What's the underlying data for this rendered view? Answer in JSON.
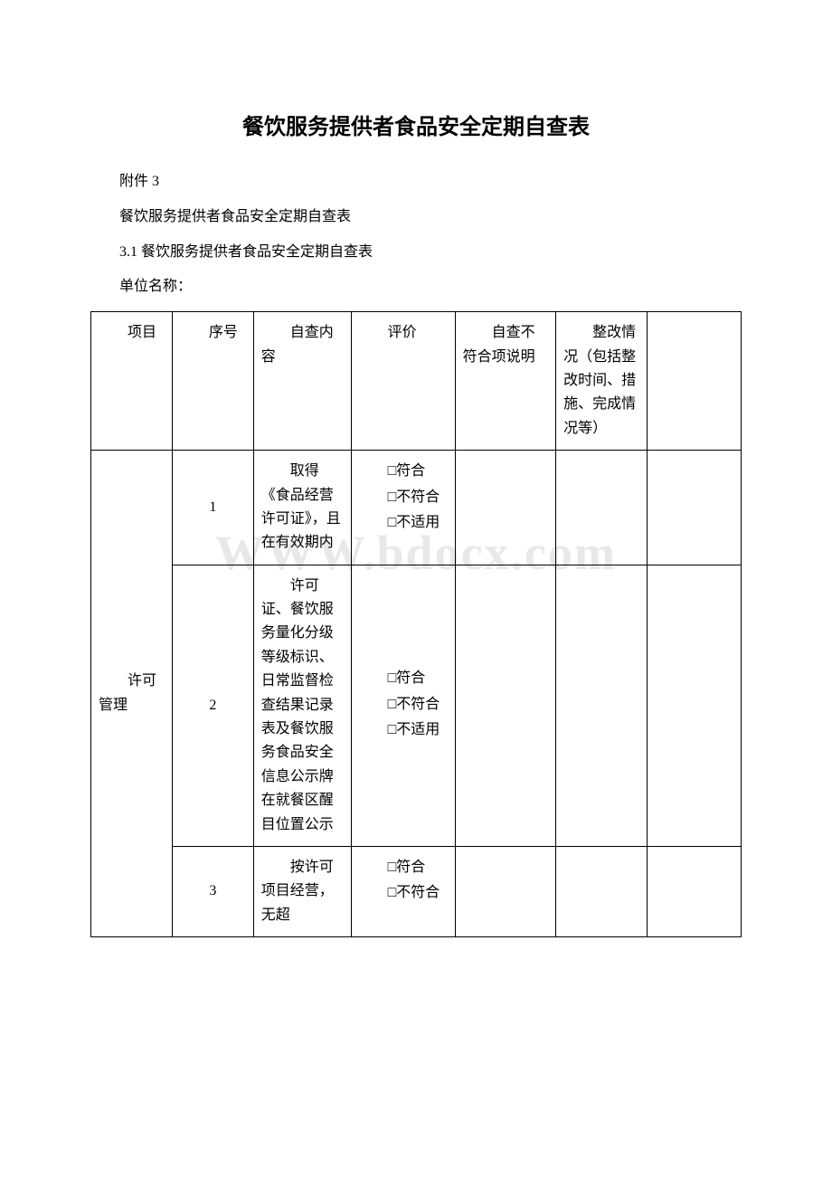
{
  "watermark": "WWW.bdocx.com",
  "title": "餐饮服务提供者食品安全定期自查表",
  "intro": {
    "line1": "附件 3",
    "line2": "餐饮服务提供者食品安全定期自查表",
    "line3": "3.1 餐饮服务提供者食品安全定期自查表",
    "line4": "单位名称："
  },
  "headers": {
    "project": "项目",
    "seq": "序号",
    "content": "自查内容",
    "eval": "评价",
    "explain": "自查不符合项说明",
    "rectify": "整改情况（包括整改时间、措施、完成情况等）"
  },
  "category1": "许可管理",
  "rows": [
    {
      "seq": "1",
      "content": "取得《食品经营许可证》，且在有效期内",
      "eval": [
        "□符合",
        "□不符合",
        "□不适用"
      ]
    },
    {
      "seq": "2",
      "content": "许可证、餐饮服务量化分级等级标识、日常监督检查结果记录表及餐饮服务食品安全信息公示牌在就餐区醒目位置公示",
      "eval": [
        "□符合",
        "□不符合",
        "□不适用"
      ]
    },
    {
      "seq": "3",
      "content": "按许可项目经营，无超",
      "eval": [
        "□符合",
        "□不符合"
      ]
    }
  ]
}
